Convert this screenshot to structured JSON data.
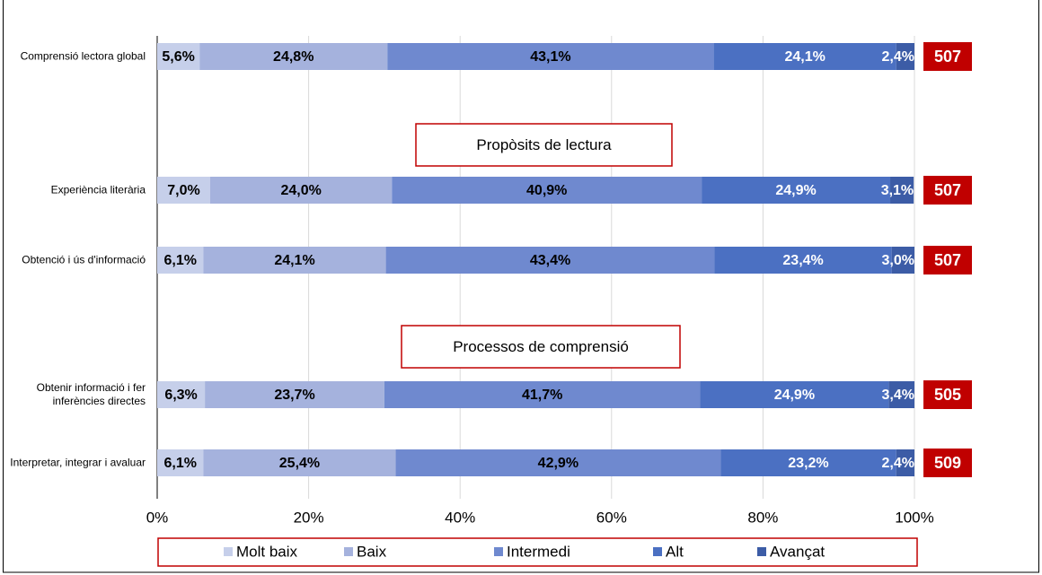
{
  "chart_data": {
    "type": "stacked-bar-horizontal",
    "categories": [
      "Comprensió lectora global",
      "Experiència literària",
      "Obtenció i ús d'informació",
      "Obtenir informació i fer inferències directes",
      "Interpretar, integrar i avaluar"
    ],
    "series": [
      {
        "name": "Molt baix",
        "color": "#c6cfea",
        "label_color": "#000000",
        "values": [
          5.6,
          7.0,
          6.1,
          6.3,
          6.1
        ],
        "value_labels": [
          "5,6%",
          "7,0%",
          "6,1%",
          "6,3%",
          "6,1%"
        ]
      },
      {
        "name": "Baix",
        "color": "#a5b2dd",
        "label_color": "#000000",
        "values": [
          24.8,
          24.0,
          24.1,
          23.7,
          25.4
        ],
        "value_labels": [
          "24,8%",
          "24,0%",
          "24,1%",
          "23,7%",
          "25,4%"
        ]
      },
      {
        "name": "Intermedi",
        "color": "#6f89cf",
        "label_color": "#000000",
        "values": [
          43.1,
          40.9,
          43.4,
          41.7,
          42.9
        ],
        "value_labels": [
          "43,1%",
          "40,9%",
          "43,4%",
          "41,7%",
          "42,9%"
        ]
      },
      {
        "name": "Alt",
        "color": "#4b70c2",
        "label_color": "#ffffff",
        "values": [
          24.1,
          24.9,
          23.4,
          24.9,
          23.2
        ],
        "value_labels": [
          "24,1%",
          "24,9%",
          "23,4%",
          "24,9%",
          "23,2%"
        ]
      },
      {
        "name": "Avançat",
        "color": "#3c5ca6",
        "label_color": "#ffffff",
        "values": [
          2.4,
          3.1,
          3.0,
          3.4,
          2.4
        ],
        "value_labels": [
          "2,4%",
          "3,1%",
          "3,0%",
          "3,4%",
          "2,4%"
        ]
      }
    ],
    "scores": [
      507,
      507,
      507,
      505,
      509
    ],
    "annotations": [
      "Propòsits de lectura",
      "Processos de comprensió"
    ],
    "xlim": [
      0,
      100
    ],
    "xticks": [
      {
        "value": 0,
        "label": "0%"
      },
      {
        "value": 20,
        "label": "20%"
      },
      {
        "value": 40,
        "label": "40%"
      },
      {
        "value": 60,
        "label": "60%"
      },
      {
        "value": 80,
        "label": "80%"
      },
      {
        "value": 100,
        "label": "100%"
      }
    ],
    "grid": true
  }
}
